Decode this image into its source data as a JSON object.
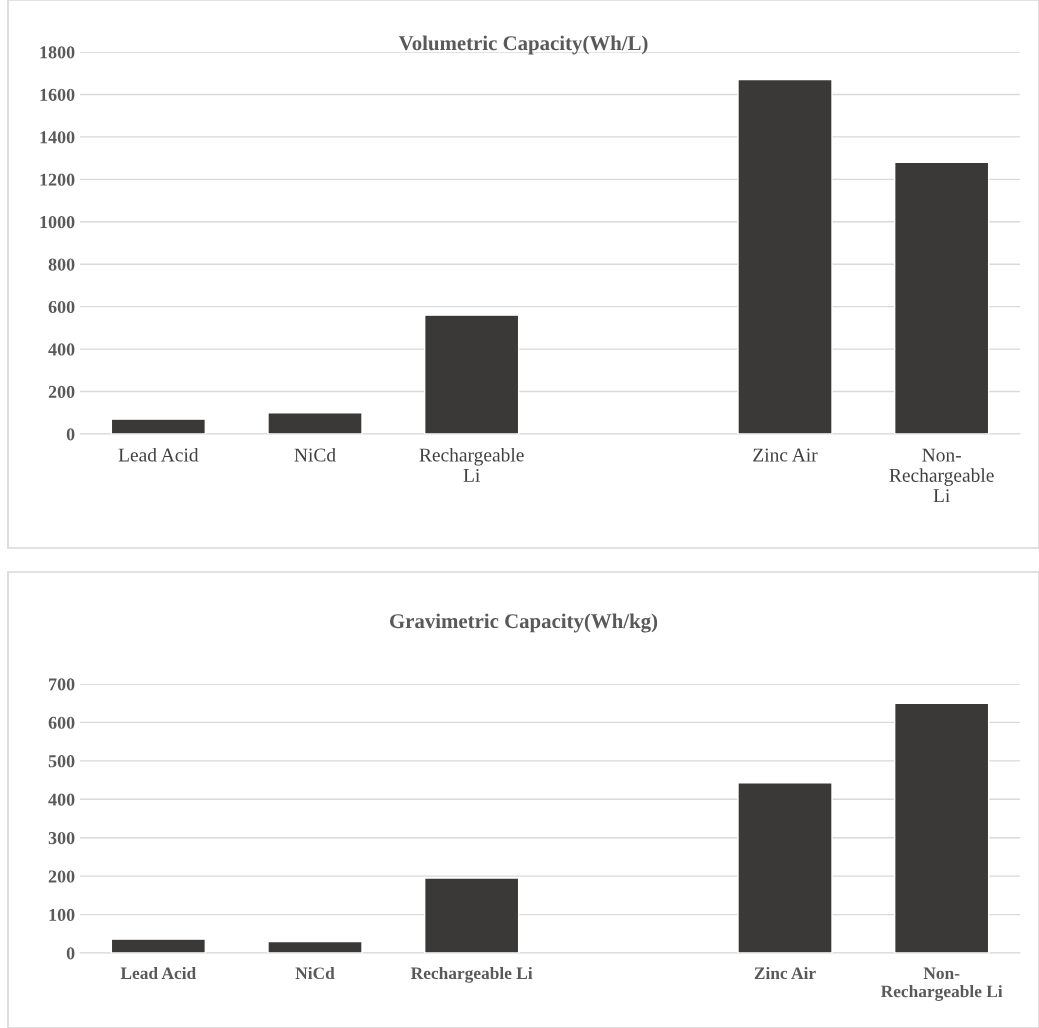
{
  "chart_data": [
    {
      "type": "bar",
      "title": "Volumetric Capacity(Wh/L)",
      "categories": [
        "Lead Acid",
        "NiCd",
        "Rechargeable\nLi",
        null,
        "Zinc Air",
        "Non-\nRechargeable\nLi"
      ],
      "values": [
        70,
        100,
        560,
        null,
        1670,
        1280
      ],
      "color": "#3a3937",
      "ylim": [
        0,
        1800
      ],
      "yticks": [
        0,
        200,
        400,
        600,
        800,
        1000,
        1200,
        1400,
        1600,
        1800
      ],
      "grid": "y"
    },
    {
      "type": "bar",
      "title": "Gravimetric Capacity(Wh/kg)",
      "categories": [
        "Lead Acid",
        "NiCd",
        "Rechargeable Li",
        null,
        "Zinc Air",
        "Non-\nRechargeable Li"
      ],
      "values": [
        36,
        30,
        195,
        null,
        443,
        650
      ],
      "color": "#3a3937",
      "ylim": [
        0,
        700
      ],
      "yticks": [
        0,
        100,
        200,
        300,
        400,
        500,
        600,
        700
      ],
      "grid": "y"
    }
  ]
}
